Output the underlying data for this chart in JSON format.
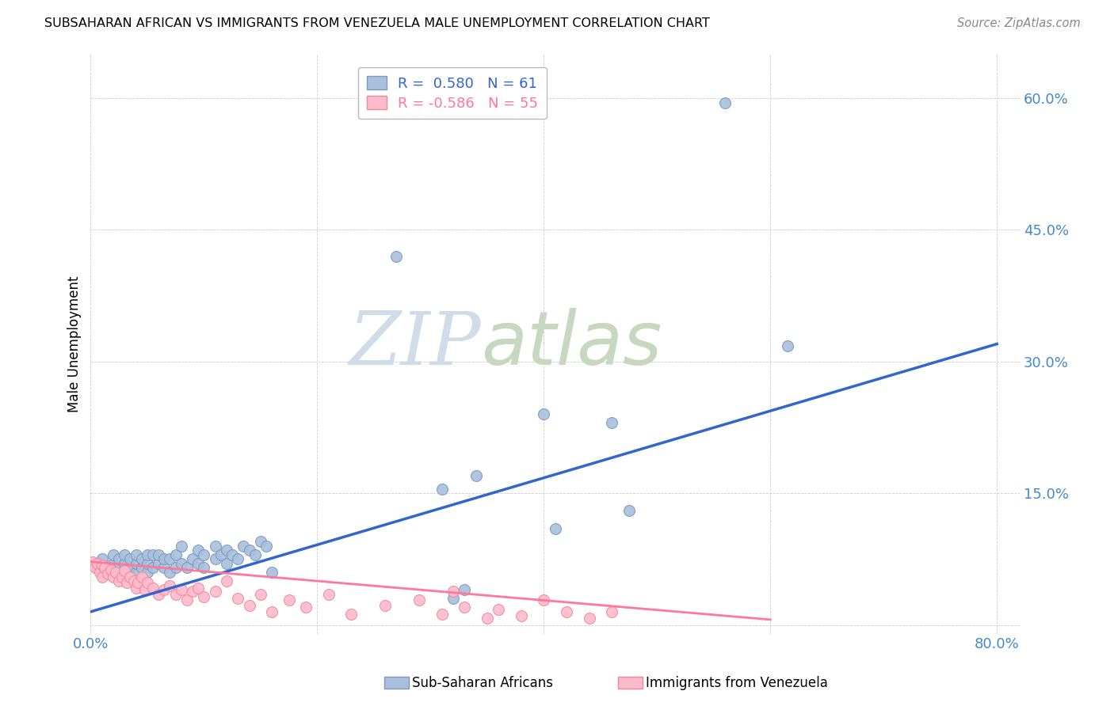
{
  "title": "SUBSAHARAN AFRICAN VS IMMIGRANTS FROM VENEZUELA MALE UNEMPLOYMENT CORRELATION CHART",
  "source": "Source: ZipAtlas.com",
  "ylabel": "Male Unemployment",
  "xlim": [
    0.0,
    0.82
  ],
  "ylim": [
    -0.01,
    0.65
  ],
  "yticks": [
    0.0,
    0.15,
    0.3,
    0.45,
    0.6
  ],
  "xticks": [
    0.0,
    0.2,
    0.4,
    0.6,
    0.8
  ],
  "watermark_zip": "ZIP",
  "watermark_atlas": "atlas",
  "legend_r_blue": "R =  0.580",
  "legend_n_blue": "N = 61",
  "legend_r_pink": "R = -0.586",
  "legend_n_pink": "N = 55",
  "blue_fill": "#AABFDD",
  "blue_edge": "#7799BB",
  "pink_fill": "#FFBBCC",
  "pink_edge": "#EE8899",
  "blue_line_color": "#3366CC",
  "pink_line_color": "#FF7799",
  "tick_color": "#4488CC",
  "background_color": "#FFFFFF",
  "grid_color": "#CCCCCC",
  "blue_scatter": [
    [
      0.005,
      0.065
    ],
    [
      0.01,
      0.075
    ],
    [
      0.015,
      0.06
    ],
    [
      0.02,
      0.07
    ],
    [
      0.02,
      0.08
    ],
    [
      0.025,
      0.065
    ],
    [
      0.025,
      0.075
    ],
    [
      0.03,
      0.07
    ],
    [
      0.03,
      0.08
    ],
    [
      0.035,
      0.065
    ],
    [
      0.035,
      0.075
    ],
    [
      0.04,
      0.06
    ],
    [
      0.04,
      0.07
    ],
    [
      0.04,
      0.08
    ],
    [
      0.045,
      0.065
    ],
    [
      0.045,
      0.075
    ],
    [
      0.05,
      0.06
    ],
    [
      0.05,
      0.07
    ],
    [
      0.05,
      0.08
    ],
    [
      0.055,
      0.065
    ],
    [
      0.055,
      0.08
    ],
    [
      0.06,
      0.07
    ],
    [
      0.06,
      0.08
    ],
    [
      0.065,
      0.065
    ],
    [
      0.065,
      0.075
    ],
    [
      0.07,
      0.06
    ],
    [
      0.07,
      0.075
    ],
    [
      0.075,
      0.065
    ],
    [
      0.075,
      0.08
    ],
    [
      0.08,
      0.07
    ],
    [
      0.08,
      0.09
    ],
    [
      0.085,
      0.065
    ],
    [
      0.09,
      0.075
    ],
    [
      0.095,
      0.07
    ],
    [
      0.095,
      0.085
    ],
    [
      0.1,
      0.065
    ],
    [
      0.1,
      0.08
    ],
    [
      0.11,
      0.075
    ],
    [
      0.11,
      0.09
    ],
    [
      0.115,
      0.08
    ],
    [
      0.12,
      0.07
    ],
    [
      0.12,
      0.085
    ],
    [
      0.125,
      0.08
    ],
    [
      0.13,
      0.075
    ],
    [
      0.135,
      0.09
    ],
    [
      0.14,
      0.085
    ],
    [
      0.145,
      0.08
    ],
    [
      0.15,
      0.095
    ],
    [
      0.155,
      0.09
    ],
    [
      0.16,
      0.06
    ],
    [
      0.27,
      0.42
    ],
    [
      0.31,
      0.155
    ],
    [
      0.32,
      0.03
    ],
    [
      0.33,
      0.04
    ],
    [
      0.34,
      0.17
    ],
    [
      0.4,
      0.24
    ],
    [
      0.41,
      0.11
    ],
    [
      0.46,
      0.23
    ],
    [
      0.475,
      0.13
    ],
    [
      0.56,
      0.595
    ],
    [
      0.615,
      0.318
    ]
  ],
  "pink_scatter": [
    [
      0.0,
      0.068
    ],
    [
      0.002,
      0.072
    ],
    [
      0.004,
      0.065
    ],
    [
      0.006,
      0.07
    ],
    [
      0.008,
      0.06
    ],
    [
      0.01,
      0.068
    ],
    [
      0.01,
      0.055
    ],
    [
      0.012,
      0.065
    ],
    [
      0.015,
      0.058
    ],
    [
      0.018,
      0.063
    ],
    [
      0.02,
      0.055
    ],
    [
      0.022,
      0.06
    ],
    [
      0.025,
      0.05
    ],
    [
      0.028,
      0.055
    ],
    [
      0.03,
      0.062
    ],
    [
      0.032,
      0.048
    ],
    [
      0.035,
      0.055
    ],
    [
      0.038,
      0.05
    ],
    [
      0.04,
      0.042
    ],
    [
      0.042,
      0.048
    ],
    [
      0.045,
      0.055
    ],
    [
      0.048,
      0.04
    ],
    [
      0.05,
      0.048
    ],
    [
      0.055,
      0.042
    ],
    [
      0.06,
      0.035
    ],
    [
      0.065,
      0.04
    ],
    [
      0.07,
      0.045
    ],
    [
      0.075,
      0.035
    ],
    [
      0.08,
      0.04
    ],
    [
      0.085,
      0.028
    ],
    [
      0.09,
      0.038
    ],
    [
      0.095,
      0.042
    ],
    [
      0.1,
      0.032
    ],
    [
      0.11,
      0.038
    ],
    [
      0.12,
      0.05
    ],
    [
      0.13,
      0.03
    ],
    [
      0.14,
      0.022
    ],
    [
      0.15,
      0.035
    ],
    [
      0.16,
      0.015
    ],
    [
      0.175,
      0.028
    ],
    [
      0.19,
      0.02
    ],
    [
      0.21,
      0.035
    ],
    [
      0.23,
      0.012
    ],
    [
      0.26,
      0.022
    ],
    [
      0.29,
      0.028
    ],
    [
      0.31,
      0.012
    ],
    [
      0.32,
      0.038
    ],
    [
      0.33,
      0.02
    ],
    [
      0.35,
      0.008
    ],
    [
      0.36,
      0.018
    ],
    [
      0.38,
      0.01
    ],
    [
      0.4,
      0.028
    ],
    [
      0.42,
      0.015
    ],
    [
      0.44,
      0.008
    ],
    [
      0.46,
      0.015
    ]
  ],
  "blue_line_x": [
    0.0,
    0.8
  ],
  "blue_line_y": [
    0.015,
    0.32
  ],
  "pink_line_x": [
    0.0,
    0.6
  ],
  "pink_line_y": [
    0.072,
    0.006
  ],
  "figsize": [
    14.06,
    8.92
  ],
  "dpi": 100
}
